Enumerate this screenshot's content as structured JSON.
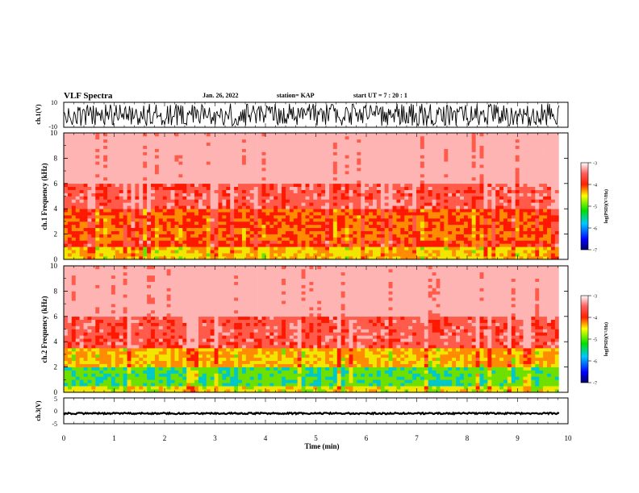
{
  "header": {
    "title": "VLF Spectra",
    "date": "Jan. 26, 2022",
    "station": "station= KAP",
    "start_ut": "start  UT =   7 : 20 : 1"
  },
  "chart_data": [
    {
      "type": "line",
      "name": "ch1-voltage",
      "ylabel": "ch.1(V)",
      "ylim": [
        -10,
        10
      ],
      "yticks": [
        "10",
        "-10"
      ],
      "xlim": [
        0,
        10
      ],
      "x_extent": [
        0,
        9.82
      ],
      "amplitude_range": [
        -9,
        9
      ]
    },
    {
      "type": "heatmap",
      "name": "ch1-spectrogram",
      "ylabel": "ch.1  Frequency  (kHz)",
      "ylim": [
        0,
        10
      ],
      "yticks": [
        "0",
        "2",
        "4",
        "6",
        "8",
        "10"
      ],
      "xlim": [
        0,
        10
      ],
      "x_extent": [
        0,
        9.82
      ],
      "colorbar": {
        "label": "log(PSD)(V²/Hz)",
        "range": [
          -7,
          -3
        ],
        "ticks": [
          "-3",
          "-4",
          "-5",
          "-6",
          "-7"
        ]
      },
      "bands": [
        {
          "f": [
            0.0,
            0.9
          ],
          "level": -4.5
        },
        {
          "f": [
            0.9,
            1.5
          ],
          "level": -4.0
        },
        {
          "f": [
            1.5,
            2.4
          ],
          "level": -4.2
        },
        {
          "f": [
            2.4,
            4.0
          ],
          "level": -4.1
        },
        {
          "f": [
            4.0,
            6.0
          ],
          "level": -3.7
        },
        {
          "f": [
            6.0,
            10.0
          ],
          "level": -3.3
        }
      ]
    },
    {
      "type": "heatmap",
      "name": "ch2-spectrogram",
      "ylabel": "ch.2  Frequency  (kHz)",
      "ylim": [
        0,
        10
      ],
      "yticks": [
        "0",
        "2",
        "4",
        "6",
        "8",
        "10"
      ],
      "xlim": [
        0,
        10
      ],
      "x_extent": [
        0,
        9.82
      ],
      "colorbar": {
        "label": "log(PSD)(V²/Hz)",
        "range": [
          -7,
          -3
        ],
        "ticks": [
          "-3",
          "-4",
          "-5",
          "-6",
          "-7"
        ]
      },
      "bands": [
        {
          "f": [
            0.0,
            0.5
          ],
          "level": -4.6
        },
        {
          "f": [
            0.5,
            1.9
          ],
          "level": -5.0
        },
        {
          "f": [
            1.9,
            2.1
          ],
          "level": -3.9
        },
        {
          "f": [
            2.1,
            3.5
          ],
          "level": -4.4
        },
        {
          "f": [
            3.5,
            6.0
          ],
          "level": -3.7
        },
        {
          "f": [
            6.0,
            10.0
          ],
          "level": -3.3
        }
      ]
    },
    {
      "type": "line",
      "name": "ch3-voltage",
      "ylabel": "ch.3(V)",
      "ylim": [
        -5,
        5
      ],
      "yticks": [
        "5",
        "0",
        "-5"
      ],
      "xlim": [
        0,
        10
      ],
      "x_extent": [
        0,
        9.82
      ],
      "xlabel": "Time  (min)",
      "xticks": [
        "0",
        "1",
        "2",
        "3",
        "4",
        "5",
        "6",
        "7",
        "8",
        "9",
        "10"
      ],
      "level": -1.0,
      "amplitude_range": [
        -1.3,
        -0.7
      ]
    }
  ]
}
